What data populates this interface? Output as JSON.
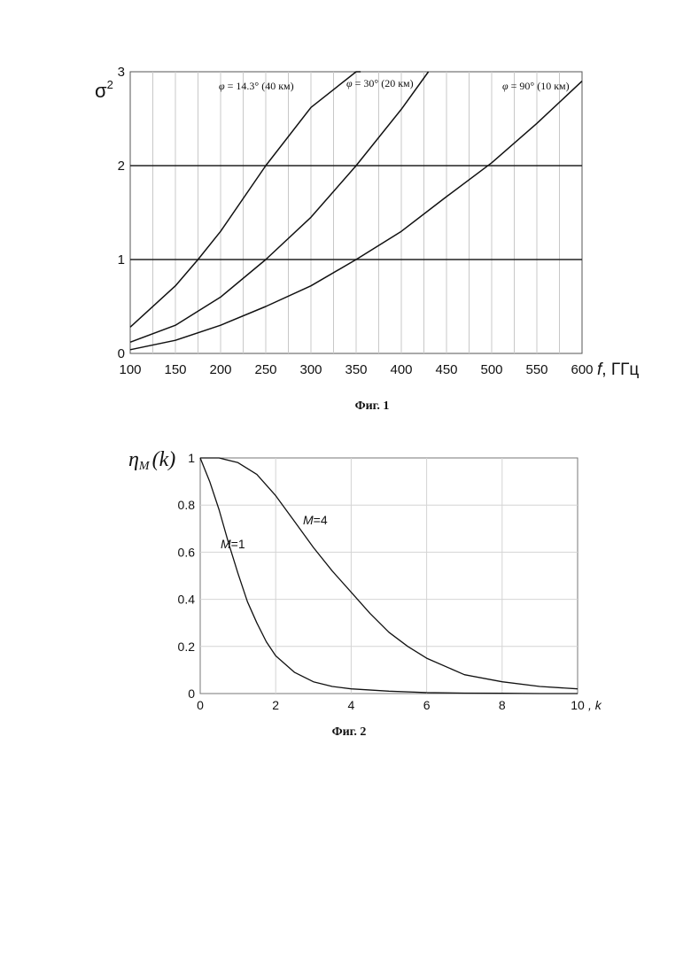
{
  "chart_data": [
    {
      "type": "line",
      "caption": "Фиг. 1",
      "ylabel": "σ",
      "ylabel_sup": "2",
      "xlabel_var": "f",
      "xlabel_unit": ", ГГц",
      "xlim": [
        100,
        600
      ],
      "ylim": [
        0,
        3
      ],
      "xticks": [
        "100",
        "150",
        "200",
        "250",
        "300",
        "350",
        "400",
        "450",
        "500",
        "550",
        "600"
      ],
      "yticks": [
        "0",
        "1",
        "2",
        "3"
      ],
      "xticks_num": [
        100,
        150,
        200,
        250,
        300,
        350,
        400,
        450,
        500,
        550,
        600
      ],
      "yticks_num": [
        0,
        1,
        2,
        3
      ],
      "vertical_grid": true,
      "reference_lines": [
        1,
        2
      ],
      "series": [
        {
          "label_sym": "φ",
          "label": " = 14.3° (40 км)",
          "x": [
            100,
            150,
            175,
            200,
            250,
            300,
            350,
            355
          ],
          "y": [
            0.28,
            0.72,
            1.0,
            1.3,
            2.0,
            2.62,
            3.0,
            3.0
          ]
        },
        {
          "label_sym": "φ",
          "label": " = 30° (20 км)",
          "x": [
            100,
            150,
            200,
            250,
            300,
            350,
            400,
            430
          ],
          "y": [
            0.12,
            0.3,
            0.6,
            1.0,
            1.45,
            2.0,
            2.6,
            3.0
          ]
        },
        {
          "label_sym": "φ",
          "label": " = 90° (10 км)",
          "x": [
            100,
            150,
            200,
            250,
            300,
            350,
            400,
            450,
            500,
            550,
            600
          ],
          "y": [
            0.04,
            0.14,
            0.3,
            0.5,
            0.72,
            1.0,
            1.3,
            1.67,
            2.03,
            2.45,
            2.9
          ]
        }
      ]
    },
    {
      "type": "line",
      "caption": "Фиг. 2",
      "ylabel_sym": "η",
      "ylabel_sub": "M",
      "ylabel_arg": "(k)",
      "xlabel": ", k",
      "xlim": [
        0,
        10
      ],
      "ylim": [
        0,
        1
      ],
      "xticks": [
        "0",
        "2",
        "4",
        "6",
        "8",
        "10"
      ],
      "yticks": [
        "0",
        "0.2",
        "0.4",
        "0.6",
        "0.8",
        "1"
      ],
      "xticks_num": [
        0,
        2,
        4,
        6,
        8,
        10
      ],
      "yticks_num": [
        0,
        0.2,
        0.4,
        0.6,
        0.8,
        1
      ],
      "grid": true,
      "series": [
        {
          "label_var": "M",
          "label": "=1",
          "x": [
            0,
            0.25,
            0.5,
            0.75,
            1,
            1.25,
            1.5,
            1.75,
            2,
            2.5,
            3,
            3.5,
            4,
            5,
            6,
            7,
            8,
            9,
            10
          ],
          "y": [
            1.0,
            0.9,
            0.78,
            0.64,
            0.51,
            0.39,
            0.3,
            0.22,
            0.16,
            0.09,
            0.05,
            0.03,
            0.02,
            0.01,
            0.004,
            0.002,
            0.001,
            0.0,
            0.0
          ]
        },
        {
          "label_var": "M",
          "label": "=4",
          "x": [
            0,
            0.5,
            1,
            1.5,
            2,
            2.5,
            3,
            3.5,
            4,
            4.5,
            5,
            5.5,
            6,
            7,
            8,
            9,
            10
          ],
          "y": [
            1.0,
            1.0,
            0.98,
            0.93,
            0.84,
            0.73,
            0.62,
            0.52,
            0.43,
            0.34,
            0.26,
            0.2,
            0.15,
            0.08,
            0.05,
            0.03,
            0.02
          ]
        }
      ]
    }
  ]
}
